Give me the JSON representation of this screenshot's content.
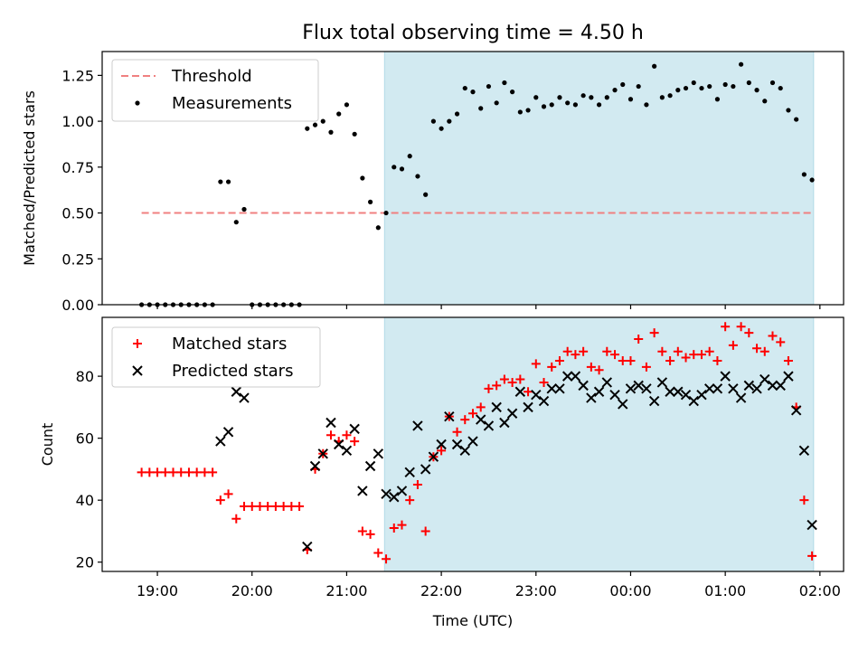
{
  "chart_data": [
    {
      "type": "scatter",
      "title": "Flux total observing time = 4.50 h",
      "xlabel": "",
      "ylabel": "Matched/Predicted stars",
      "xlim": [
        "18:25",
        "02:15"
      ],
      "ylim": [
        0,
        1.38
      ],
      "yticks": [
        0.0,
        0.25,
        0.5,
        0.75,
        1.0,
        1.25
      ],
      "ytick_labels": [
        "0.00",
        "0.25",
        "0.50",
        "0.75",
        "1.00",
        "1.25"
      ],
      "xticks": [
        "19:00",
        "20:00",
        "21:00",
        "22:00",
        "23:00",
        "00:00",
        "01:00",
        "02:00"
      ],
      "shaded_span": [
        "21:24",
        "01:56"
      ],
      "shaded_color": "#add8e6",
      "legend": {
        "placement": "top-left",
        "entries": [
          "Threshold",
          "Measurements"
        ]
      },
      "threshold": {
        "name": "Threshold",
        "value": 0.5,
        "x": [
          "18:50",
          "01:56"
        ],
        "color": "#f08080",
        "style": "dashed"
      },
      "series": [
        {
          "name": "Measurements",
          "color": "#000000",
          "marker": "dot",
          "points": [
            [
              "18:50",
              0
            ],
            [
              "18:55",
              0
            ],
            [
              "19:00",
              0
            ],
            [
              "19:05",
              0
            ],
            [
              "19:10",
              0
            ],
            [
              "19:15",
              0
            ],
            [
              "19:20",
              0
            ],
            [
              "19:25",
              0
            ],
            [
              "19:30",
              0
            ],
            [
              "19:35",
              0
            ],
            [
              "19:40",
              0.67
            ],
            [
              "19:45",
              0.67
            ],
            [
              "19:50",
              0.45
            ],
            [
              "19:55",
              0.52
            ],
            [
              "20:00",
              0
            ],
            [
              "20:05",
              0
            ],
            [
              "20:10",
              0
            ],
            [
              "20:15",
              0
            ],
            [
              "20:20",
              0
            ],
            [
              "20:25",
              0
            ],
            [
              "20:30",
              0
            ],
            [
              "20:35",
              0.96
            ],
            [
              "20:40",
              0.98
            ],
            [
              "20:45",
              1.0
            ],
            [
              "20:50",
              0.94
            ],
            [
              "20:55",
              1.04
            ],
            [
              "21:00",
              1.09
            ],
            [
              "21:05",
              0.93
            ],
            [
              "21:10",
              0.69
            ],
            [
              "21:15",
              0.56
            ],
            [
              "21:20",
              0.42
            ],
            [
              "21:25",
              0.5
            ],
            [
              "21:30",
              0.75
            ],
            [
              "21:35",
              0.74
            ],
            [
              "21:40",
              0.81
            ],
            [
              "21:45",
              0.7
            ],
            [
              "21:50",
              0.6
            ],
            [
              "21:55",
              1.0
            ],
            [
              "22:00",
              0.96
            ],
            [
              "22:05",
              1.0
            ],
            [
              "22:10",
              1.04
            ],
            [
              "22:15",
              1.18
            ],
            [
              "22:20",
              1.16
            ],
            [
              "22:25",
              1.07
            ],
            [
              "22:30",
              1.19
            ],
            [
              "22:35",
              1.1
            ],
            [
              "22:40",
              1.21
            ],
            [
              "22:45",
              1.16
            ],
            [
              "22:50",
              1.05
            ],
            [
              "22:55",
              1.06
            ],
            [
              "23:00",
              1.13
            ],
            [
              "23:05",
              1.08
            ],
            [
              "23:10",
              1.09
            ],
            [
              "23:15",
              1.13
            ],
            [
              "23:20",
              1.1
            ],
            [
              "23:25",
              1.09
            ],
            [
              "23:30",
              1.14
            ],
            [
              "23:35",
              1.13
            ],
            [
              "23:40",
              1.09
            ],
            [
              "23:45",
              1.13
            ],
            [
              "23:50",
              1.17
            ],
            [
              "23:55",
              1.2
            ],
            [
              "00:00",
              1.12
            ],
            [
              "00:05",
              1.19
            ],
            [
              "00:10",
              1.09
            ],
            [
              "00:15",
              1.3
            ],
            [
              "00:20",
              1.13
            ],
            [
              "00:25",
              1.14
            ],
            [
              "00:30",
              1.17
            ],
            [
              "00:35",
              1.18
            ],
            [
              "00:40",
              1.21
            ],
            [
              "00:45",
              1.18
            ],
            [
              "00:50",
              1.19
            ],
            [
              "00:55",
              1.12
            ],
            [
              "01:00",
              1.2
            ],
            [
              "01:05",
              1.19
            ],
            [
              "01:10",
              1.31
            ],
            [
              "01:15",
              1.21
            ],
            [
              "01:20",
              1.17
            ],
            [
              "01:25",
              1.11
            ],
            [
              "01:30",
              1.21
            ],
            [
              "01:35",
              1.18
            ],
            [
              "01:40",
              1.06
            ],
            [
              "01:45",
              1.01
            ],
            [
              "01:50",
              0.71
            ],
            [
              "01:55",
              0.68
            ]
          ]
        }
      ]
    },
    {
      "type": "scatter",
      "title": "",
      "xlabel": "Time (UTC)",
      "ylabel": "Count",
      "xlim": [
        "18:25",
        "02:15"
      ],
      "ylim": [
        17,
        99
      ],
      "yticks": [
        20,
        40,
        60,
        80
      ],
      "ytick_labels": [
        "20",
        "40",
        "60",
        "80"
      ],
      "xticks": [
        "19:00",
        "20:00",
        "21:00",
        "22:00",
        "23:00",
        "00:00",
        "01:00",
        "02:00"
      ],
      "shaded_span": [
        "21:24",
        "01:56"
      ],
      "shaded_color": "#add8e6",
      "legend": {
        "placement": "top-left",
        "entries": [
          "Matched stars",
          "Predicted stars"
        ]
      },
      "series": [
        {
          "name": "Matched stars",
          "color": "#ff0000",
          "marker": "plus",
          "points": [
            [
              "18:50",
              49
            ],
            [
              "18:55",
              49
            ],
            [
              "19:00",
              49
            ],
            [
              "19:05",
              49
            ],
            [
              "19:10",
              49
            ],
            [
              "19:15",
              49
            ],
            [
              "19:20",
              49
            ],
            [
              "19:25",
              49
            ],
            [
              "19:30",
              49
            ],
            [
              "19:35",
              49
            ],
            [
              "19:40",
              40
            ],
            [
              "19:45",
              42
            ],
            [
              "19:50",
              34
            ],
            [
              "19:55",
              38
            ],
            [
              "20:00",
              38
            ],
            [
              "20:05",
              38
            ],
            [
              "20:10",
              38
            ],
            [
              "20:15",
              38
            ],
            [
              "20:20",
              38
            ],
            [
              "20:25",
              38
            ],
            [
              "20:30",
              38
            ],
            [
              "20:35",
              24
            ],
            [
              "20:40",
              50
            ],
            [
              "20:45",
              55
            ],
            [
              "20:50",
              61
            ],
            [
              "20:55",
              59
            ],
            [
              "21:00",
              61
            ],
            [
              "21:05",
              59
            ],
            [
              "21:10",
              30
            ],
            [
              "21:15",
              29
            ],
            [
              "21:20",
              23
            ],
            [
              "21:25",
              21
            ],
            [
              "21:30",
              31
            ],
            [
              "21:35",
              32
            ],
            [
              "21:40",
              40
            ],
            [
              "21:45",
              45
            ],
            [
              "21:50",
              30
            ],
            [
              "21:55",
              54
            ],
            [
              "22:00",
              56
            ],
            [
              "22:05",
              67
            ],
            [
              "22:10",
              62
            ],
            [
              "22:15",
              66
            ],
            [
              "22:20",
              68
            ],
            [
              "22:25",
              70
            ],
            [
              "22:30",
              76
            ],
            [
              "22:35",
              77
            ],
            [
              "22:40",
              79
            ],
            [
              "22:45",
              78
            ],
            [
              "22:50",
              79
            ],
            [
              "22:55",
              75
            ],
            [
              "23:00",
              84
            ],
            [
              "23:05",
              78
            ],
            [
              "23:10",
              83
            ],
            [
              "23:15",
              85
            ],
            [
              "23:20",
              88
            ],
            [
              "23:25",
              87
            ],
            [
              "23:30",
              88
            ],
            [
              "23:35",
              83
            ],
            [
              "23:40",
              82
            ],
            [
              "23:45",
              88
            ],
            [
              "23:50",
              87
            ],
            [
              "23:55",
              85
            ],
            [
              "00:00",
              85
            ],
            [
              "00:05",
              92
            ],
            [
              "00:10",
              83
            ],
            [
              "00:15",
              94
            ],
            [
              "00:20",
              88
            ],
            [
              "00:25",
              85
            ],
            [
              "00:30",
              88
            ],
            [
              "00:35",
              86
            ],
            [
              "00:40",
              87
            ],
            [
              "00:45",
              87
            ],
            [
              "00:50",
              88
            ],
            [
              "00:55",
              85
            ],
            [
              "01:00",
              96
            ],
            [
              "01:05",
              90
            ],
            [
              "01:10",
              96
            ],
            [
              "01:15",
              94
            ],
            [
              "01:20",
              89
            ],
            [
              "01:25",
              88
            ],
            [
              "01:30",
              93
            ],
            [
              "01:35",
              91
            ],
            [
              "01:40",
              85
            ],
            [
              "01:45",
              70
            ],
            [
              "01:50",
              40
            ],
            [
              "01:55",
              22
            ]
          ]
        },
        {
          "name": "Predicted stars",
          "color": "#000000",
          "marker": "x",
          "points": [
            [
              "19:40",
              59
            ],
            [
              "19:45",
              62
            ],
            [
              "19:50",
              75
            ],
            [
              "19:55",
              73
            ],
            [
              "20:35",
              25
            ],
            [
              "20:40",
              51
            ],
            [
              "20:45",
              55
            ],
            [
              "20:50",
              65
            ],
            [
              "20:55",
              58
            ],
            [
              "21:00",
              56
            ],
            [
              "21:05",
              63
            ],
            [
              "21:10",
              43
            ],
            [
              "21:15",
              51
            ],
            [
              "21:20",
              55
            ],
            [
              "21:25",
              42
            ],
            [
              "21:30",
              41
            ],
            [
              "21:35",
              43
            ],
            [
              "21:40",
              49
            ],
            [
              "21:45",
              64
            ],
            [
              "21:50",
              50
            ],
            [
              "21:55",
              54
            ],
            [
              "22:00",
              58
            ],
            [
              "22:05",
              67
            ],
            [
              "22:10",
              58
            ],
            [
              "22:15",
              56
            ],
            [
              "22:20",
              59
            ],
            [
              "22:25",
              66
            ],
            [
              "22:30",
              64
            ],
            [
              "22:35",
              70
            ],
            [
              "22:40",
              65
            ],
            [
              "22:45",
              68
            ],
            [
              "22:50",
              75
            ],
            [
              "22:55",
              70
            ],
            [
              "23:00",
              74
            ],
            [
              "23:05",
              72
            ],
            [
              "23:10",
              76
            ],
            [
              "23:15",
              76
            ],
            [
              "23:20",
              80
            ],
            [
              "23:25",
              80
            ],
            [
              "23:30",
              77
            ],
            [
              "23:35",
              73
            ],
            [
              "23:40",
              75
            ],
            [
              "23:45",
              78
            ],
            [
              "23:50",
              74
            ],
            [
              "23:55",
              71
            ],
            [
              "00:00",
              76
            ],
            [
              "00:05",
              77
            ],
            [
              "00:10",
              76
            ],
            [
              "00:15",
              72
            ],
            [
              "00:20",
              78
            ],
            [
              "00:25",
              75
            ],
            [
              "00:30",
              75
            ],
            [
              "00:35",
              74
            ],
            [
              "00:40",
              72
            ],
            [
              "00:45",
              74
            ],
            [
              "00:50",
              76
            ],
            [
              "00:55",
              76
            ],
            [
              "01:00",
              80
            ],
            [
              "01:05",
              76
            ],
            [
              "01:10",
              73
            ],
            [
              "01:15",
              77
            ],
            [
              "01:20",
              76
            ],
            [
              "01:25",
              79
            ],
            [
              "01:30",
              77
            ],
            [
              "01:35",
              77
            ],
            [
              "01:40",
              80
            ],
            [
              "01:45",
              69
            ],
            [
              "01:50",
              56
            ],
            [
              "01:55",
              32
            ]
          ]
        }
      ]
    }
  ]
}
